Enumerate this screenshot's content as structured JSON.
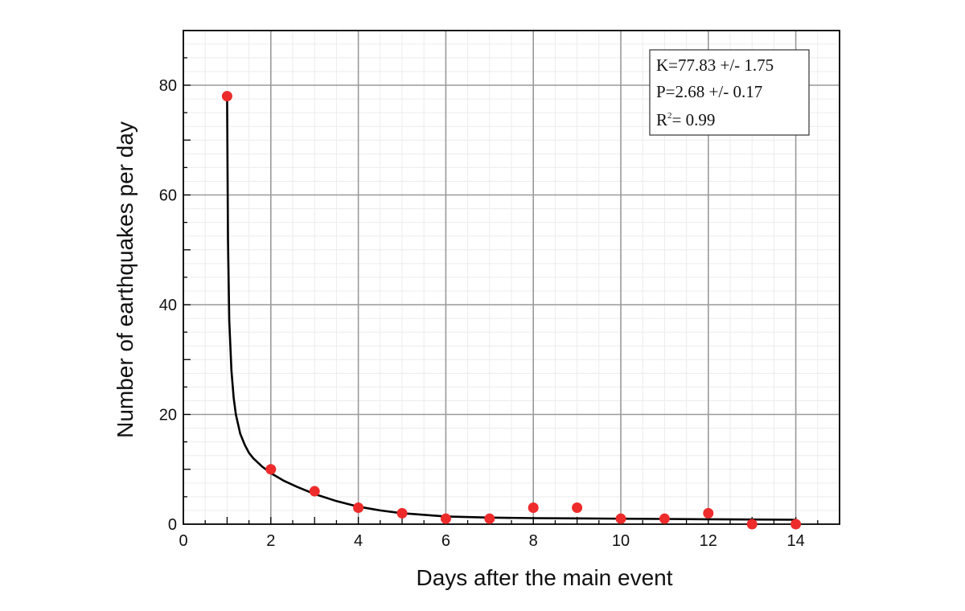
{
  "chart_data": {
    "type": "scatter",
    "xlabel": "Days after the main event",
    "ylabel": "Number of earthquakes per day",
    "xlim": [
      0,
      15
    ],
    "ylim": [
      0,
      90
    ],
    "x_ticks": [
      0,
      2,
      4,
      6,
      8,
      10,
      12,
      14
    ],
    "y_ticks": [
      0,
      20,
      40,
      60,
      80
    ],
    "grid": true,
    "points": {
      "color": "#ee2b2b",
      "x": [
        1,
        2,
        3,
        4,
        5,
        6,
        7,
        8,
        9,
        10,
        11,
        12,
        13,
        14
      ],
      "y": [
        78,
        10,
        6,
        3,
        2,
        1,
        1,
        3,
        3,
        1,
        1,
        2,
        0,
        0
      ]
    },
    "fit_curve": {
      "color": "#000000",
      "x": [
        1.0,
        1.02,
        1.05,
        1.1,
        1.15,
        1.2,
        1.3,
        1.4,
        1.5,
        1.6,
        1.8,
        2.0,
        2.3,
        2.6,
        3.0,
        3.5,
        4.0,
        4.5,
        5.0,
        6.0,
        7.0,
        8.0,
        9.0,
        10.0,
        11.0,
        12.0,
        13.0,
        14.0
      ],
      "y": [
        78.0,
        52.0,
        37.0,
        28.0,
        23.0,
        20.0,
        16.5,
        14.5,
        13.0,
        12.0,
        10.5,
        9.3,
        7.9,
        6.8,
        5.5,
        4.2,
        3.2,
        2.5,
        2.0,
        1.4,
        1.2,
        1.1,
        1.05,
        1.0,
        0.95,
        0.9,
        0.85,
        0.8
      ]
    },
    "annotation": {
      "line1": "K=77.83 +/- 1.75",
      "line2": "P=2.68 +/- 0.17",
      "line3_prefix": "R",
      "line3_sup": "2",
      "line3_suffix": "= 0.99"
    }
  }
}
